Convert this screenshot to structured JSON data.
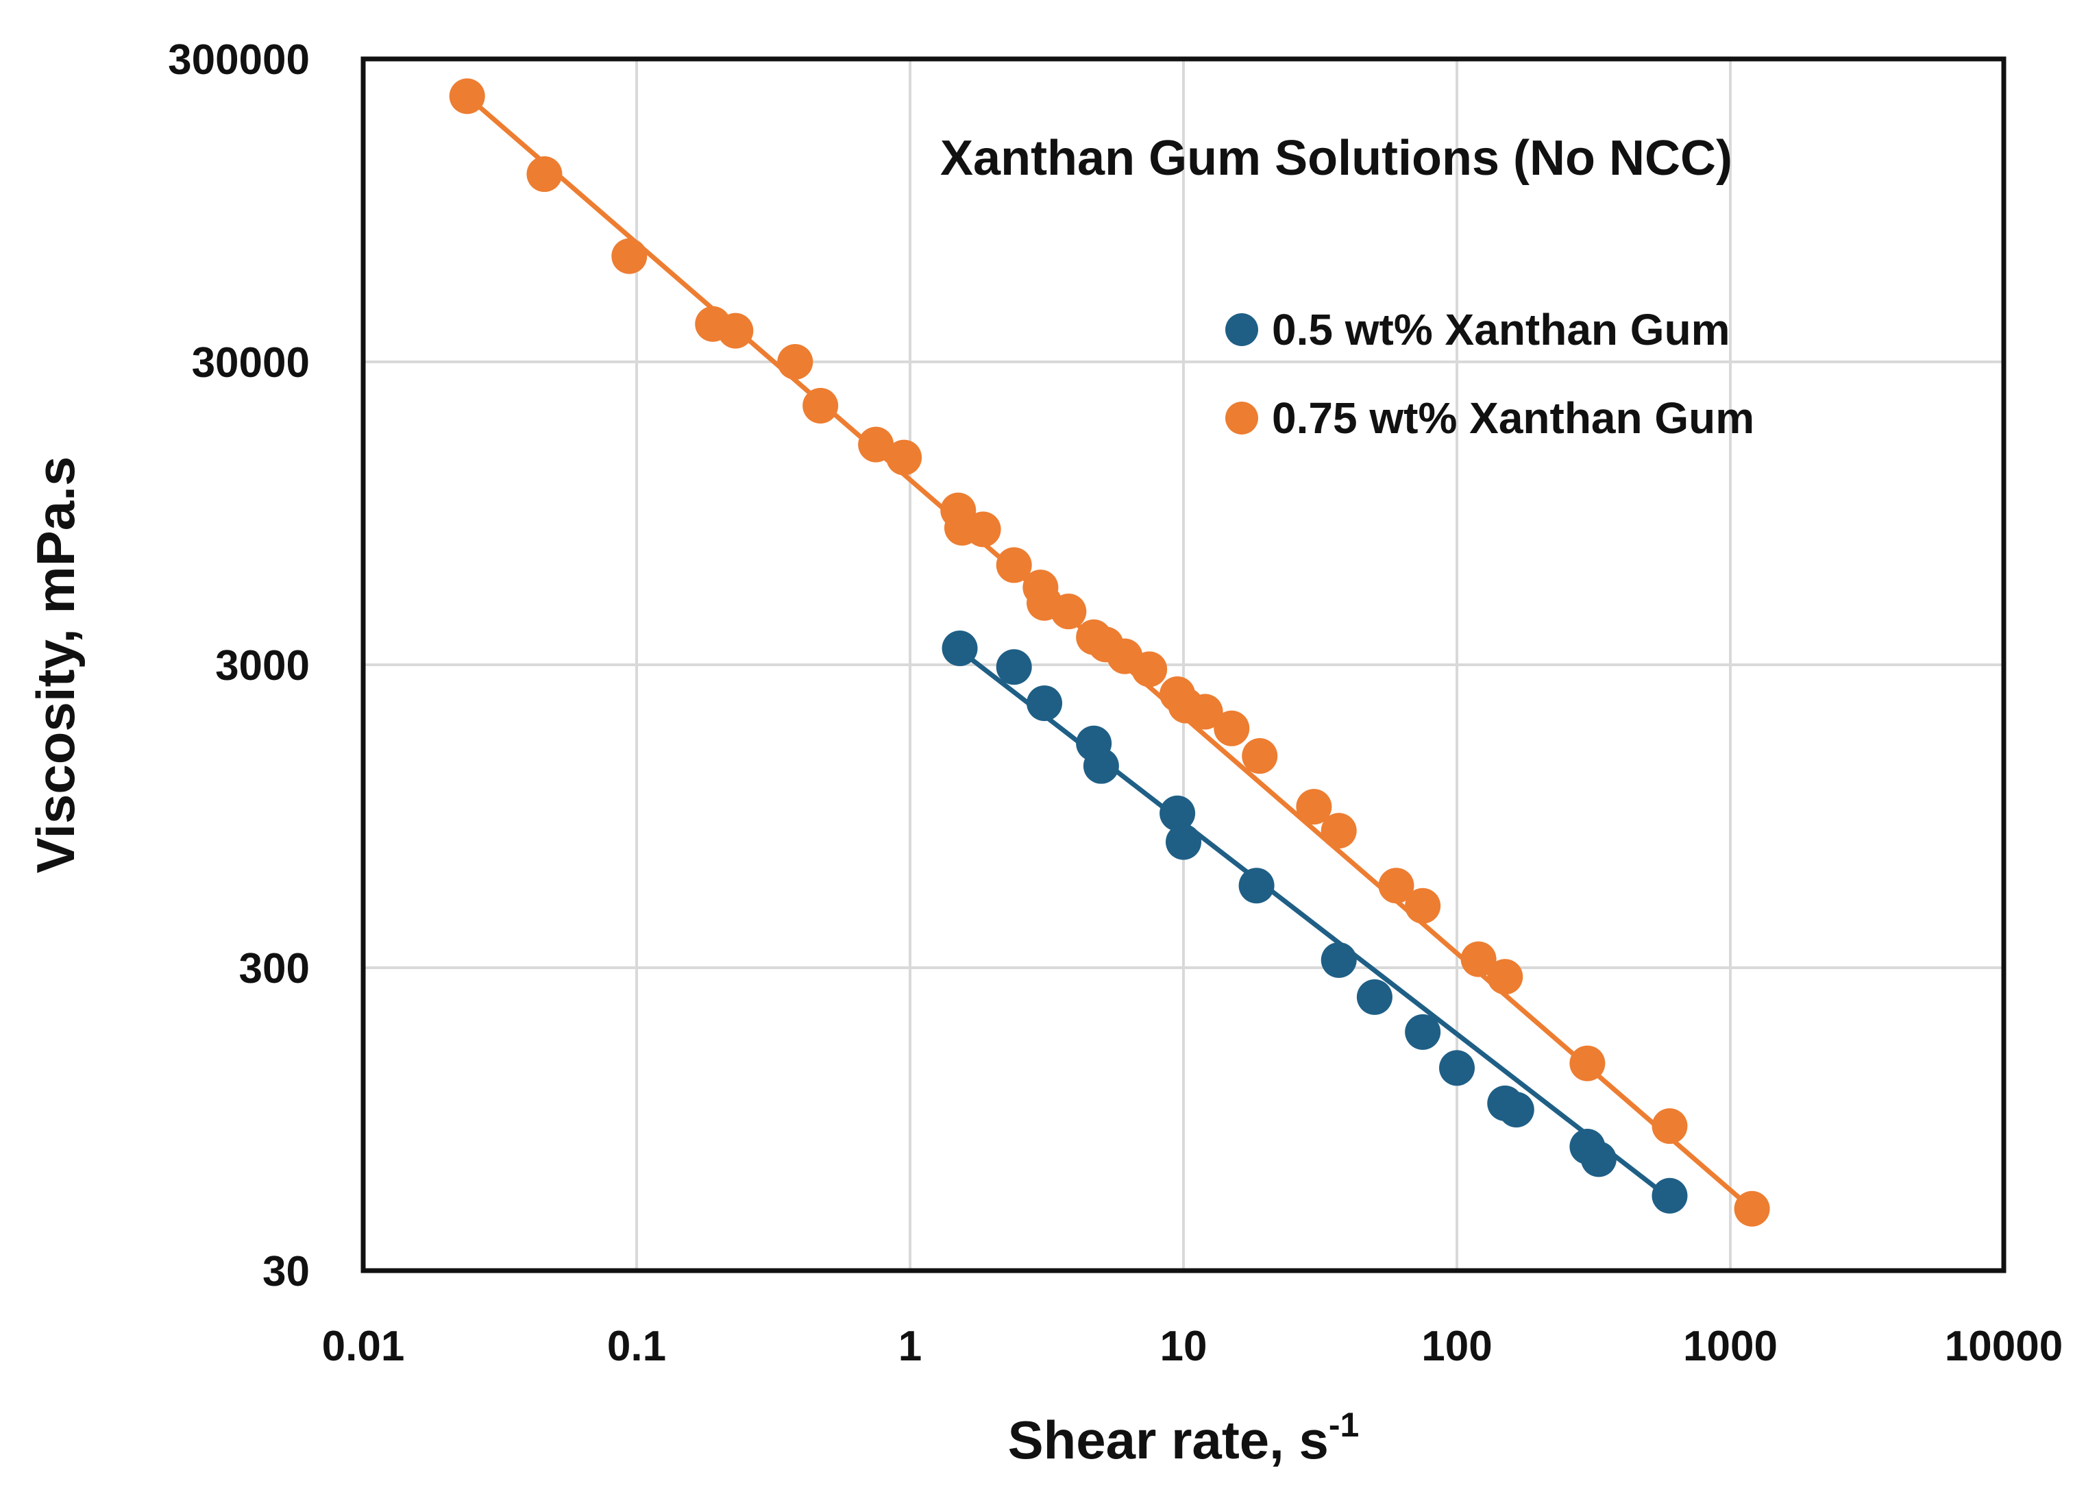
{
  "chart_data": {
    "type": "scatter",
    "title": "Xanthan Gum Solutions (No NCC)",
    "xlabel": "Shear rate, s",
    "xlabel_superscript": "-1",
    "ylabel": "Viscosity, mPa.s",
    "xscale": "log",
    "yscale": "log",
    "xlim": [
      0.01,
      10000
    ],
    "ylim": [
      30,
      300000
    ],
    "xticks": [
      0.01,
      0.1,
      1,
      10,
      100,
      1000,
      10000
    ],
    "xtick_labels": [
      "0.01",
      "0.1",
      "1",
      "10",
      "100",
      "1000",
      "10000"
    ],
    "yticks": [
      30,
      300,
      3000,
      30000,
      300000
    ],
    "ytick_labels": [
      "30",
      "300",
      "3000",
      "30000",
      "300000"
    ],
    "grid": true,
    "legend_position": "upper-right inside",
    "series": [
      {
        "name": "0.5 wt% Xanthan Gum",
        "color": "#1f5f86",
        "points": [
          [
            1.52,
            3400
          ],
          [
            2.4,
            2950
          ],
          [
            3.1,
            2240
          ],
          [
            4.7,
            1650
          ],
          [
            5.0,
            1390
          ],
          [
            9.5,
            970
          ],
          [
            10.0,
            780
          ],
          [
            18.5,
            560
          ],
          [
            37,
            318
          ],
          [
            50,
            240
          ],
          [
            75,
            184
          ],
          [
            100,
            140
          ],
          [
            150,
            107
          ],
          [
            165,
            102
          ],
          [
            300,
            77
          ],
          [
            330,
            70
          ],
          [
            600,
            53
          ]
        ]
      },
      {
        "name": "0.75 wt% Xanthan Gum",
        "color": "#ed7d31",
        "points": [
          [
            0.024,
            226000
          ],
          [
            0.046,
            125000
          ],
          [
            0.094,
            67000
          ],
          [
            0.19,
            40000
          ],
          [
            0.23,
            38000
          ],
          [
            0.38,
            30000
          ],
          [
            0.47,
            21500
          ],
          [
            0.75,
            16000
          ],
          [
            0.95,
            14500
          ],
          [
            1.5,
            9700
          ],
          [
            1.55,
            8500
          ],
          [
            1.85,
            8400
          ],
          [
            2.4,
            6400
          ],
          [
            3.0,
            5400
          ],
          [
            3.1,
            4800
          ],
          [
            3.8,
            4500
          ],
          [
            4.7,
            3700
          ],
          [
            5.2,
            3500
          ],
          [
            6.1,
            3200
          ],
          [
            7.5,
            2900
          ],
          [
            9.5,
            2400
          ],
          [
            10.2,
            2200
          ],
          [
            12.0,
            2100
          ],
          [
            15.0,
            1850
          ],
          [
            19.0,
            1500
          ],
          [
            30,
            1020
          ],
          [
            37,
            850
          ],
          [
            60,
            560
          ],
          [
            75,
            480
          ],
          [
            120,
            320
          ],
          [
            150,
            280
          ],
          [
            300,
            145
          ],
          [
            600,
            90
          ],
          [
            1200,
            48
          ]
        ]
      }
    ],
    "fit_lines": [
      {
        "series": "0.5 wt% Xanthan Gum",
        "from": [
          1.52,
          3350
        ],
        "to": [
          600,
          52
        ]
      },
      {
        "series": "0.75 wt% Xanthan Gum",
        "from": [
          0.024,
          226000
        ],
        "to": [
          1200,
          48
        ]
      }
    ]
  }
}
